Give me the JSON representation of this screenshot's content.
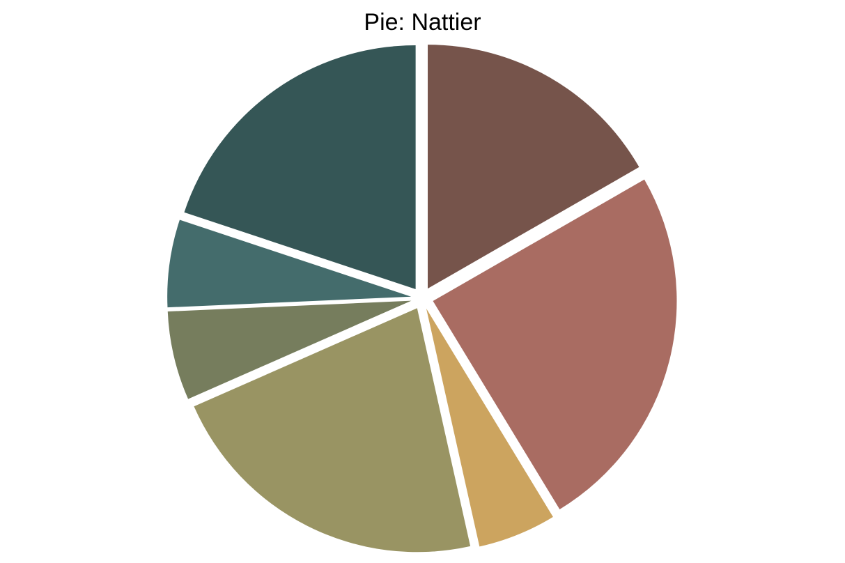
{
  "chart_data": {
    "type": "pie",
    "title": "Pie: Nattier",
    "start_angle_deg": 90,
    "direction": "clockwise",
    "exploded": true,
    "labels_shown": false,
    "legend": "none",
    "slices": [
      {
        "value": 16.7,
        "color": "#76544B"
      },
      {
        "value": 24.6,
        "color": "#A96C62"
      },
      {
        "value": 5.2,
        "color": "#CCA45F"
      },
      {
        "value": 21.9,
        "color": "#999463"
      },
      {
        "value": 5.9,
        "color": "#767D5D"
      },
      {
        "value": 5.8,
        "color": "#446C6C"
      },
      {
        "value": 19.9,
        "color": "#355656"
      }
    ]
  }
}
